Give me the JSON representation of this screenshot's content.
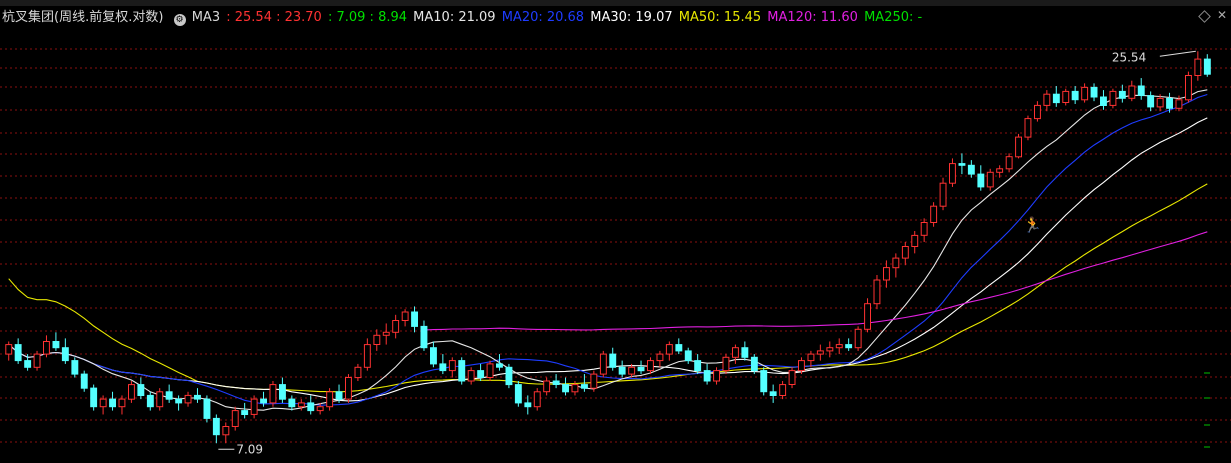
{
  "legend": {
    "title": "杭叉集团(周线.前复权.对数)",
    "ma3_label": "MA3",
    "ma3_values": ": 25.54 : 23.70",
    "ma3_values_b": ": 7.09 : 8.94",
    "ma10": "MA10: 21.09",
    "ma20": "MA20: 20.68",
    "ma30": "MA30: 19.07",
    "ma50": "MA50: 15.45",
    "ma120": "MA120: 11.60",
    "ma250": "MA250: -"
  },
  "colors": {
    "up": "#ff3232",
    "down": "#54ffff",
    "ma3": "#ff3232",
    "ma3b": "#00e000",
    "ma10": "#e6e6e6",
    "ma20": "#1e3cff",
    "ma30": "#ffffff",
    "ma50": "#e8e800",
    "ma120": "#e020e0",
    "grid": "#8a1010"
  },
  "chart_data": {
    "type": "candlestick",
    "title": "杭叉集团(周线.前复权.对数)",
    "scale": "log",
    "ylim": [
      6.9,
      27.2
    ],
    "annotations": [
      {
        "text": "25.54",
        "kind": "max"
      },
      {
        "text": "7.09",
        "kind": "min"
      }
    ],
    "candles": [
      [
        9.5,
        9.9,
        9.3,
        9.8
      ],
      [
        9.8,
        10.0,
        9.2,
        9.3
      ],
      [
        9.3,
        9.5,
        9.0,
        9.1
      ],
      [
        9.1,
        9.6,
        9.0,
        9.5
      ],
      [
        9.5,
        10.1,
        9.4,
        9.9
      ],
      [
        9.9,
        10.2,
        9.6,
        9.7
      ],
      [
        9.7,
        10.0,
        9.2,
        9.3
      ],
      [
        9.3,
        9.4,
        8.8,
        8.9
      ],
      [
        8.9,
        9.0,
        8.4,
        8.5
      ],
      [
        8.5,
        8.6,
        7.9,
        8.0
      ],
      [
        8.0,
        8.3,
        7.8,
        8.2
      ],
      [
        8.2,
        8.4,
        7.9,
        8.0
      ],
      [
        8.0,
        8.3,
        7.8,
        8.2
      ],
      [
        8.2,
        8.7,
        8.1,
        8.6
      ],
      [
        8.6,
        8.8,
        8.2,
        8.3
      ],
      [
        8.3,
        8.4,
        7.9,
        8.0
      ],
      [
        8.0,
        8.5,
        7.9,
        8.4
      ],
      [
        8.4,
        8.6,
        8.1,
        8.2
      ],
      [
        8.2,
        8.3,
        7.9,
        8.1
      ],
      [
        8.1,
        8.4,
        8.0,
        8.3
      ],
      [
        8.3,
        8.5,
        8.1,
        8.2
      ],
      [
        8.2,
        8.3,
        7.6,
        7.7
      ],
      [
        7.7,
        7.8,
        7.1,
        7.3
      ],
      [
        7.3,
        7.6,
        7.1,
        7.5
      ],
      [
        7.5,
        8.0,
        7.4,
        7.9
      ],
      [
        7.9,
        8.1,
        7.7,
        7.8
      ],
      [
        7.8,
        8.3,
        7.7,
        8.2
      ],
      [
        8.2,
        8.4,
        8.0,
        8.1
      ],
      [
        8.1,
        8.7,
        8.0,
        8.6
      ],
      [
        8.6,
        8.8,
        8.1,
        8.2
      ],
      [
        8.2,
        8.3,
        7.9,
        8.0
      ],
      [
        8.0,
        8.2,
        7.9,
        8.1
      ],
      [
        8.1,
        8.3,
        7.8,
        7.9
      ],
      [
        7.9,
        8.1,
        7.8,
        8.0
      ],
      [
        8.0,
        8.5,
        7.9,
        8.4
      ],
      [
        8.4,
        8.6,
        8.1,
        8.2
      ],
      [
        8.2,
        8.9,
        8.1,
        8.8
      ],
      [
        8.8,
        9.2,
        8.7,
        9.1
      ],
      [
        9.1,
        10.0,
        9.0,
        9.8
      ],
      [
        9.8,
        10.3,
        9.6,
        10.1
      ],
      [
        10.1,
        10.5,
        9.8,
        10.2
      ],
      [
        10.2,
        10.8,
        10.0,
        10.6
      ],
      [
        10.6,
        11.0,
        10.4,
        10.9
      ],
      [
        10.9,
        11.1,
        10.2,
        10.4
      ],
      [
        10.4,
        10.6,
        9.6,
        9.7
      ],
      [
        9.7,
        9.9,
        9.1,
        9.2
      ],
      [
        9.2,
        9.5,
        8.9,
        9.0
      ],
      [
        9.0,
        9.4,
        8.8,
        9.3
      ],
      [
        9.3,
        9.4,
        8.6,
        8.7
      ],
      [
        8.7,
        9.1,
        8.6,
        9.0
      ],
      [
        9.0,
        9.2,
        8.7,
        8.8
      ],
      [
        8.8,
        9.3,
        8.7,
        9.2
      ],
      [
        9.2,
        9.5,
        9.0,
        9.1
      ],
      [
        9.1,
        9.2,
        8.5,
        8.6
      ],
      [
        8.6,
        8.7,
        8.0,
        8.1
      ],
      [
        8.1,
        8.3,
        7.8,
        8.0
      ],
      [
        8.0,
        8.5,
        7.9,
        8.4
      ],
      [
        8.4,
        8.8,
        8.3,
        8.7
      ],
      [
        8.7,
        8.9,
        8.5,
        8.6
      ],
      [
        8.6,
        8.8,
        8.3,
        8.4
      ],
      [
        8.4,
        8.7,
        8.3,
        8.6
      ],
      [
        8.6,
        8.9,
        8.4,
        8.5
      ],
      [
        8.5,
        9.0,
        8.4,
        8.9
      ],
      [
        8.9,
        9.6,
        8.8,
        9.5
      ],
      [
        9.5,
        9.7,
        9.0,
        9.1
      ],
      [
        9.1,
        9.3,
        8.8,
        8.9
      ],
      [
        8.9,
        9.2,
        8.8,
        9.1
      ],
      [
        9.1,
        9.3,
        8.9,
        9.0
      ],
      [
        9.0,
        9.4,
        8.9,
        9.3
      ],
      [
        9.3,
        9.6,
        9.1,
        9.5
      ],
      [
        9.5,
        9.9,
        9.3,
        9.8
      ],
      [
        9.8,
        10.0,
        9.5,
        9.6
      ],
      [
        9.6,
        9.7,
        9.2,
        9.3
      ],
      [
        9.3,
        9.5,
        8.9,
        9.0
      ],
      [
        9.0,
        9.2,
        8.6,
        8.7
      ],
      [
        8.7,
        9.1,
        8.6,
        9.0
      ],
      [
        9.0,
        9.5,
        8.9,
        9.4
      ],
      [
        9.4,
        9.8,
        9.2,
        9.7
      ],
      [
        9.7,
        9.9,
        9.3,
        9.4
      ],
      [
        9.4,
        9.5,
        8.9,
        9.0
      ],
      [
        9.0,
        9.1,
        8.3,
        8.4
      ],
      [
        8.4,
        8.6,
        8.1,
        8.3
      ],
      [
        8.3,
        8.7,
        8.2,
        8.6
      ],
      [
        8.6,
        9.1,
        8.5,
        9.0
      ],
      [
        9.0,
        9.4,
        8.9,
        9.3
      ],
      [
        9.3,
        9.6,
        9.1,
        9.5
      ],
      [
        9.5,
        9.8,
        9.3,
        9.6
      ],
      [
        9.6,
        9.9,
        9.4,
        9.7
      ],
      [
        9.7,
        10.0,
        9.5,
        9.8
      ],
      [
        9.8,
        10.0,
        9.6,
        9.7
      ],
      [
        9.7,
        10.4,
        9.6,
        10.3
      ],
      [
        10.3,
        11.4,
        10.2,
        11.2
      ],
      [
        11.2,
        12.3,
        11.0,
        12.1
      ],
      [
        12.1,
        12.9,
        11.8,
        12.6
      ],
      [
        12.6,
        13.2,
        12.2,
        13.0
      ],
      [
        13.0,
        13.7,
        12.7,
        13.5
      ],
      [
        13.5,
        14.2,
        13.2,
        14.0
      ],
      [
        14.0,
        14.8,
        13.7,
        14.6
      ],
      [
        14.6,
        15.6,
        14.4,
        15.4
      ],
      [
        15.4,
        16.9,
        15.2,
        16.6
      ],
      [
        16.6,
        18.0,
        16.4,
        17.7
      ],
      [
        17.7,
        18.3,
        17.1,
        17.6
      ],
      [
        17.6,
        17.9,
        16.9,
        17.1
      ],
      [
        17.1,
        17.6,
        16.2,
        16.4
      ],
      [
        16.4,
        17.4,
        16.2,
        17.2
      ],
      [
        17.2,
        17.6,
        16.9,
        17.4
      ],
      [
        17.4,
        18.3,
        17.2,
        18.1
      ],
      [
        18.1,
        19.5,
        18.0,
        19.3
      ],
      [
        19.3,
        20.7,
        19.1,
        20.5
      ],
      [
        20.5,
        21.7,
        20.3,
        21.4
      ],
      [
        21.4,
        22.5,
        21.0,
        22.2
      ],
      [
        22.2,
        22.8,
        21.3,
        21.6
      ],
      [
        21.6,
        22.6,
        21.4,
        22.4
      ],
      [
        22.4,
        22.8,
        21.5,
        21.8
      ],
      [
        21.8,
        23.0,
        21.6,
        22.7
      ],
      [
        22.7,
        23.0,
        21.7,
        22.0
      ],
      [
        22.0,
        22.5,
        21.1,
        21.4
      ],
      [
        21.4,
        22.6,
        21.2,
        22.4
      ],
      [
        22.4,
        22.9,
        21.6,
        21.9
      ],
      [
        21.9,
        23.2,
        21.7,
        22.8
      ],
      [
        22.8,
        23.4,
        21.8,
        22.1
      ],
      [
        22.1,
        22.4,
        21.0,
        21.3
      ],
      [
        21.3,
        22.2,
        21.0,
        21.9
      ],
      [
        21.9,
        22.3,
        20.9,
        21.2
      ],
      [
        21.2,
        22.1,
        21.0,
        21.8
      ],
      [
        21.8,
        23.9,
        21.6,
        23.6
      ],
      [
        23.6,
        25.54,
        23.2,
        24.9
      ],
      [
        24.9,
        25.3,
        23.5,
        23.7
      ]
    ]
  }
}
